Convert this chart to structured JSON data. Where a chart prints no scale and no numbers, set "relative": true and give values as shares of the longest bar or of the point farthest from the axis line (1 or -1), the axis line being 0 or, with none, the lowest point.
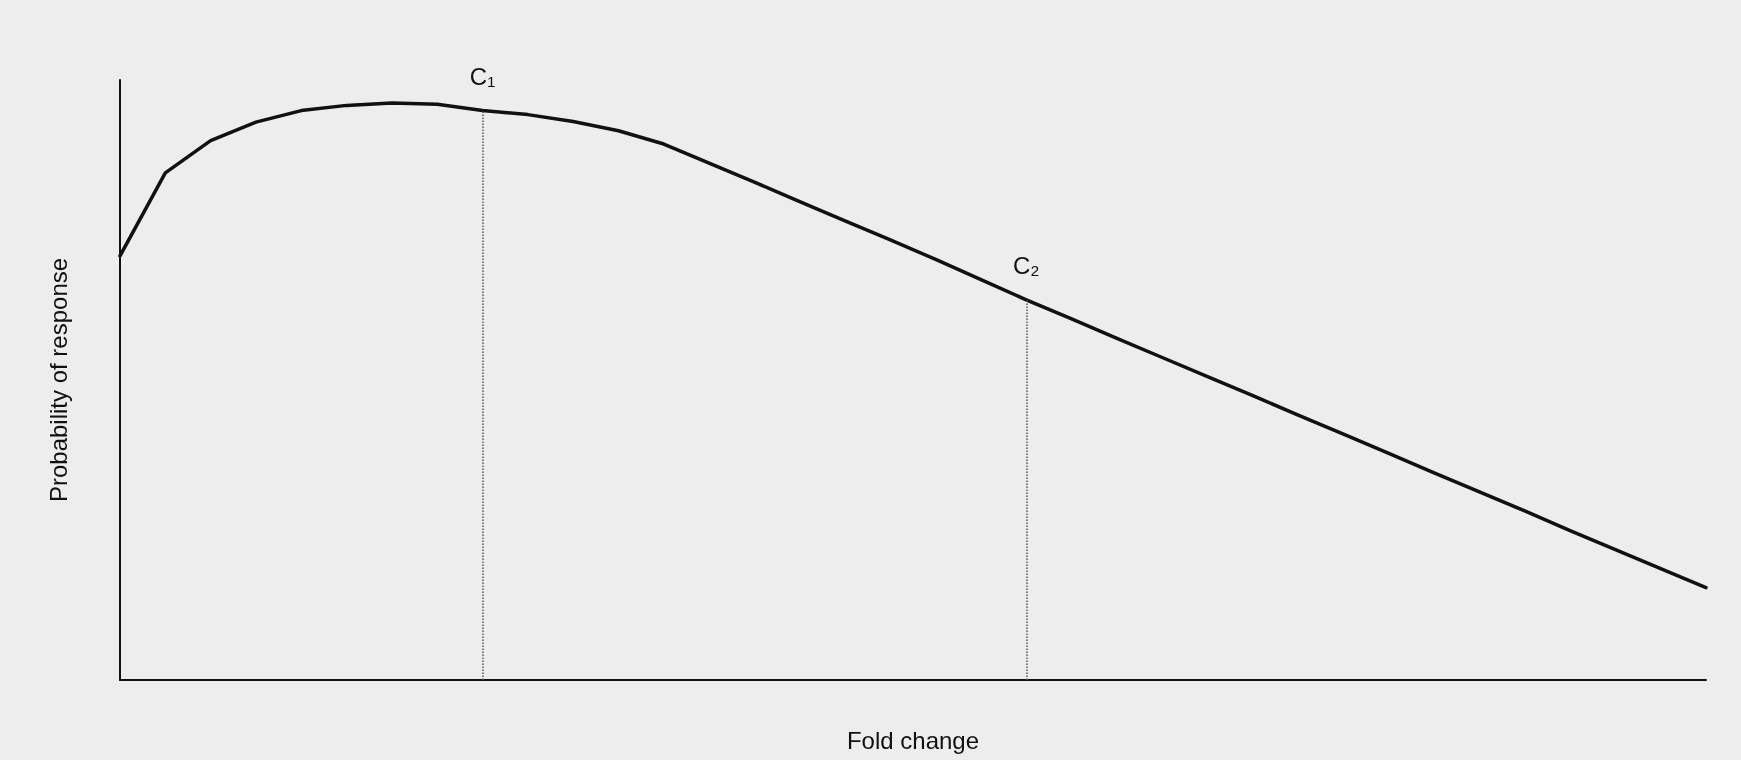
{
  "chart_data": {
    "type": "line",
    "xlabel": "Fold change",
    "ylabel": "Probability of response",
    "relative": true,
    "color": "#111111",
    "marker": "none",
    "line_style": "solid",
    "grid": false,
    "categories": [
      null,
      null,
      null,
      null,
      null,
      null,
      null,
      null,
      null,
      null,
      null,
      null,
      null,
      null,
      null,
      null,
      null,
      null,
      null,
      null,
      null,
      null,
      null,
      null,
      null,
      null,
      null,
      null,
      null,
      null,
      null,
      null,
      null,
      null,
      null,
      null
    ],
    "values": [
      0.735,
      0.879,
      0.935,
      0.967,
      0.987,
      0.996,
      1,
      0.998,
      0.987,
      0.98,
      0.968,
      0.952,
      0.929,
      0.896,
      0.863,
      0.829,
      0.796,
      0.763,
      0.729,
      0.694,
      0.659,
      0.626,
      0.592,
      0.559,
      0.526,
      0.493,
      0.459,
      0.426,
      0.393,
      0.359,
      0.326,
      0.293,
      0.259,
      0.226,
      0.193,
      0.16
    ],
    "annotations": [
      "C₁",
      "C₂"
    ]
  }
}
